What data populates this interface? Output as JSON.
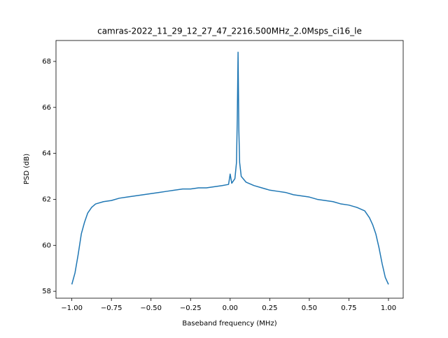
{
  "chart_data": {
    "type": "line",
    "title": "camras-2022_11_29_12_27_47_2216.500MHz_2.0Msps_ci16_le",
    "xlabel": "Baseband frequency (MHz)",
    "ylabel": "PSD (dB)",
    "x": [
      -1.0,
      -0.98,
      -0.96,
      -0.94,
      -0.92,
      -0.9,
      -0.875,
      -0.85,
      -0.8,
      -0.75,
      -0.7,
      -0.65,
      -0.6,
      -0.55,
      -0.5,
      -0.45,
      -0.4,
      -0.35,
      -0.3,
      -0.25,
      -0.2,
      -0.15,
      -0.1,
      -0.05,
      -0.01,
      0.0,
      0.01,
      0.03,
      0.04,
      0.045,
      0.05,
      0.055,
      0.06,
      0.07,
      0.1,
      0.15,
      0.2,
      0.25,
      0.3,
      0.35,
      0.4,
      0.45,
      0.5,
      0.55,
      0.6,
      0.65,
      0.7,
      0.75,
      0.8,
      0.85,
      0.88,
      0.9,
      0.92,
      0.94,
      0.96,
      0.98,
      1.0
    ],
    "series": [
      {
        "name": "PSD",
        "color": "#1f77b4",
        "values": [
          58.3,
          58.8,
          59.6,
          60.5,
          61.0,
          61.4,
          61.65,
          61.8,
          61.9,
          61.95,
          62.05,
          62.1,
          62.15,
          62.2,
          62.25,
          62.3,
          62.35,
          62.4,
          62.45,
          62.45,
          62.5,
          62.5,
          62.55,
          62.6,
          62.65,
          63.1,
          62.7,
          62.9,
          63.6,
          65.5,
          68.4,
          65.0,
          63.6,
          63.0,
          62.75,
          62.6,
          62.5,
          62.4,
          62.35,
          62.3,
          62.2,
          62.15,
          62.1,
          62.0,
          61.95,
          61.9,
          61.8,
          61.75,
          61.65,
          61.5,
          61.2,
          60.9,
          60.5,
          59.9,
          59.2,
          58.6,
          58.3
        ]
      }
    ],
    "xlim": [
      -1.1,
      1.093
    ],
    "ylim": [
      57.7,
      68.91
    ],
    "xticks": [
      {
        "value": -1,
        "label": "−1.00"
      },
      {
        "value": -0.75,
        "label": "−0.75"
      },
      {
        "value": -0.5,
        "label": "−0.50"
      },
      {
        "value": -0.25,
        "label": "−0.25"
      },
      {
        "value": 0,
        "label": "0.00"
      },
      {
        "value": 0.25,
        "label": "0.25"
      },
      {
        "value": 0.5,
        "label": "0.50"
      },
      {
        "value": 0.75,
        "label": "0.75"
      },
      {
        "value": 1,
        "label": "1.00"
      }
    ],
    "yticks": [
      58,
      60,
      62,
      64,
      66,
      68
    ],
    "grid": false
  }
}
